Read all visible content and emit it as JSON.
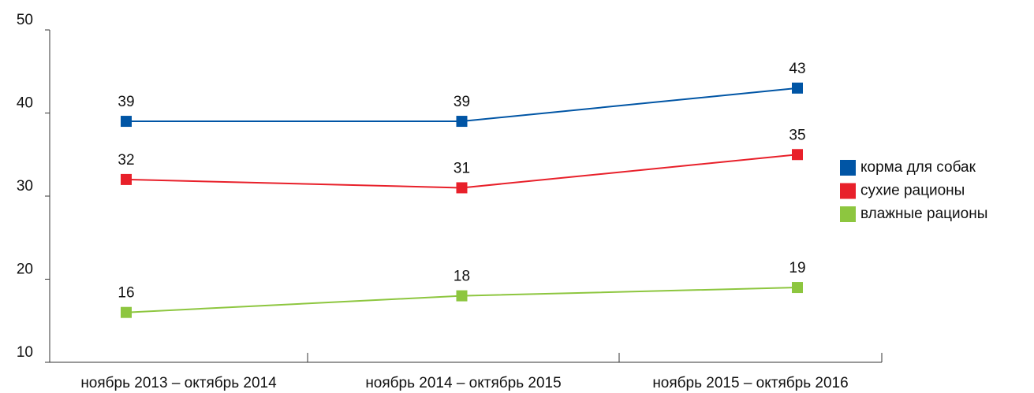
{
  "chart_data": {
    "type": "line",
    "categories": [
      "ноябрь 2013 – октябрь 2014",
      "ноябрь 2014 – октябрь 2015",
      "ноябрь 2015 – октябрь 2016"
    ],
    "series": [
      {
        "name": "корма для собак",
        "color": "#0055a5",
        "values": [
          39,
          39,
          43
        ]
      },
      {
        "name": "сухие рационы",
        "color": "#e8202a",
        "values": [
          32,
          31,
          35
        ]
      },
      {
        "name": "влажные рационы",
        "color": "#8dc63f",
        "values": [
          16,
          18,
          19
        ]
      }
    ],
    "ylim": [
      10,
      50
    ],
    "yticks": [
      10,
      20,
      30,
      40,
      50
    ],
    "grid": false,
    "legend": "right"
  }
}
